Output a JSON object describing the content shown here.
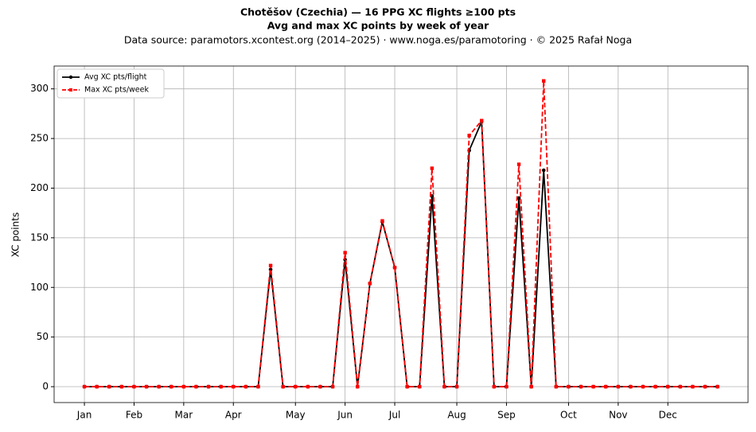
{
  "chart_data": {
    "type": "line",
    "title": "Chotěšov (Czechia)  —  16 PPG XC flights ≥100 pts",
    "title2": "Avg and max XC points by week of year",
    "subtitle": "Data source: paramotors.xcontest.org (2014–2025)  ·  www.noga.es/paramotoring  ·  © 2025 Rafał Noga",
    "ylabel": "XC points",
    "x": [
      1,
      2,
      3,
      4,
      5,
      6,
      7,
      8,
      9,
      10,
      11,
      12,
      13,
      14,
      15,
      16,
      17,
      18,
      19,
      20,
      21,
      22,
      23,
      24,
      25,
      26,
      27,
      28,
      29,
      30,
      31,
      32,
      33,
      34,
      35,
      36,
      37,
      38,
      39,
      40,
      41,
      42,
      43,
      44,
      45,
      46,
      47,
      48,
      49,
      50,
      51,
      52
    ],
    "series": [
      {
        "name": "Avg XC pts/flight",
        "color": "#000000",
        "dash": false,
        "marker": "circle",
        "values": [
          0,
          0,
          0,
          0,
          0,
          0,
          0,
          0,
          0,
          0,
          0,
          0,
          0,
          0,
          0,
          118,
          0,
          0,
          0,
          0,
          0,
          128,
          0,
          104,
          166,
          120,
          0,
          0,
          192,
          0,
          0,
          238,
          267,
          0,
          0,
          190,
          0,
          218,
          0,
          0,
          0,
          0,
          0,
          0,
          0,
          0,
          0,
          0,
          0,
          0,
          0,
          0
        ]
      },
      {
        "name": "Max XC pts/week",
        "color": "#ff0000",
        "dash": true,
        "marker": "square",
        "values": [
          0,
          0,
          0,
          0,
          0,
          0,
          0,
          0,
          0,
          0,
          0,
          0,
          0,
          0,
          0,
          122,
          0,
          0,
          0,
          0,
          0,
          135,
          0,
          104,
          167,
          120,
          0,
          0,
          220,
          0,
          0,
          253,
          268,
          0,
          0,
          224,
          0,
          308,
          0,
          0,
          0,
          0,
          0,
          0,
          0,
          0,
          0,
          0,
          0,
          0,
          0,
          0
        ]
      }
    ],
    "xlim": [
      -1.44,
      54.46
    ],
    "xticks": [
      {
        "value": 1,
        "label": "Jan"
      },
      {
        "value": 5,
        "label": "Feb"
      },
      {
        "value": 9,
        "label": "Mar"
      },
      {
        "value": 13,
        "label": "Apr"
      },
      {
        "value": 18,
        "label": "May"
      },
      {
        "value": 22,
        "label": "Jun"
      },
      {
        "value": 26,
        "label": "Jul"
      },
      {
        "value": 31,
        "label": "Aug"
      },
      {
        "value": 35,
        "label": "Sep"
      },
      {
        "value": 40,
        "label": "Oct"
      },
      {
        "value": 44,
        "label": "Nov"
      },
      {
        "value": 48,
        "label": "Dec"
      }
    ],
    "ylim": [
      -16,
      323
    ],
    "yticks": [
      0,
      50,
      100,
      150,
      200,
      250,
      300
    ],
    "grid": true,
    "legend": "upper left"
  }
}
